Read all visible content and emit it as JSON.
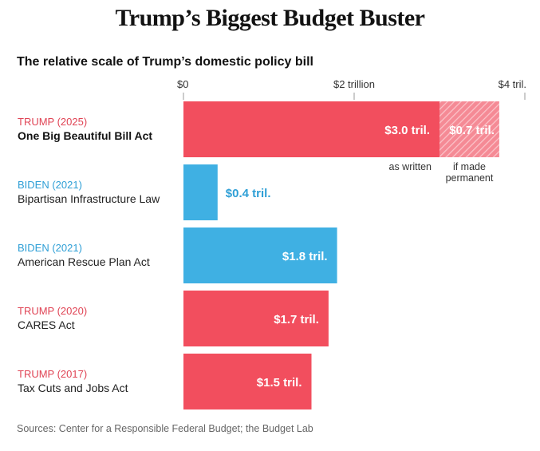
{
  "title": "Trump’s Biggest Budget Buster",
  "subtitle": "The relative scale of Trump’s domestic policy bill",
  "source": "Sources: Center for a Responsible Federal Budget; the Budget Lab",
  "colors": {
    "trump": "#f24e5e",
    "trump_text": "#e04455",
    "biden": "#3fb0e3",
    "biden_text": "#2e9fd6"
  },
  "chart_data": {
    "type": "bar",
    "orientation": "horizontal",
    "xlim": [
      0,
      4
    ],
    "ticks": [
      {
        "value": 0,
        "label": "$0"
      },
      {
        "value": 2,
        "label": "$2 trillion"
      },
      {
        "value": 4,
        "label": "$4 tril."
      }
    ],
    "rows": [
      {
        "party": "TRUMP (2025)",
        "bill": "One Big Beautiful Bill Act",
        "party_key": "trump",
        "bold": true,
        "value": 3.0,
        "label": "$3.0 tril.",
        "extra_value": 0.7,
        "extra_label": "$0.7 tril.",
        "note_main": "as written",
        "note_extra": [
          "if made",
          "permanent"
        ]
      },
      {
        "party": "BIDEN (2021)",
        "bill": "Bipartisan Infrastructure Law",
        "party_key": "biden",
        "value": 0.4,
        "label": "$0.4 tril.",
        "label_outside": true
      },
      {
        "party": "BIDEN (2021)",
        "bill": "American Rescue Plan Act",
        "party_key": "biden",
        "value": 1.8,
        "label": "$1.8 tril."
      },
      {
        "party": "TRUMP (2020)",
        "bill": "CARES Act",
        "party_key": "trump",
        "value": 1.7,
        "label": "$1.7 tril."
      },
      {
        "party": "TRUMP (2017)",
        "bill": "Tax Cuts and Jobs Act",
        "party_key": "trump",
        "value": 1.5,
        "label": "$1.5 tril."
      }
    ]
  }
}
